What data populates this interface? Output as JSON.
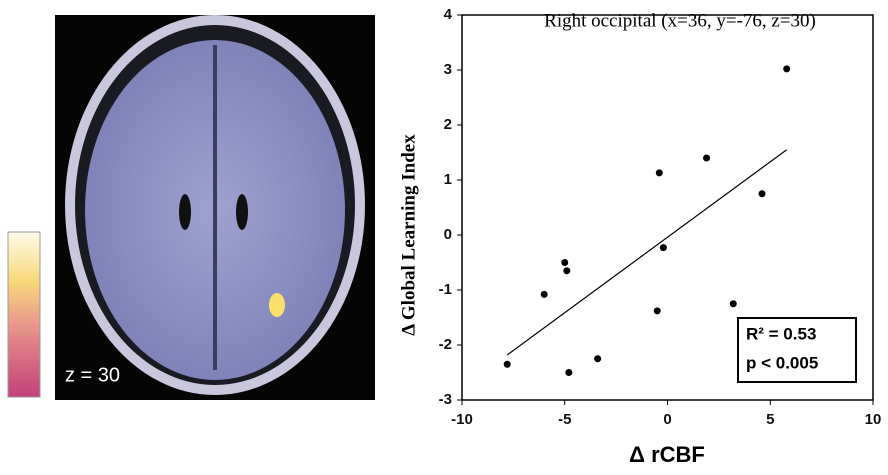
{
  "chart_data": {
    "type": "scatter",
    "title": "Right occipital (x=36, y=-76, z=30)",
    "x_label": "Δ rCBF",
    "y_label": "Δ Global Learning Index",
    "image_label": "z = 30",
    "annotations": [
      "R² = 0.53",
      "p < 0.005"
    ],
    "x": [
      -7.8,
      -6,
      -5,
      -4.9,
      -4.8,
      -3.4,
      -0.5,
      -0.4,
      -0.2,
      1.9,
      3.2,
      4.6,
      5.8
    ],
    "values": [
      -2.35,
      -1.08,
      -0.5,
      -0.65,
      -2.5,
      -2.25,
      -1.38,
      1.13,
      -0.23,
      1.4,
      -1.25,
      0.75,
      3.02
    ],
    "color": "#000000",
    "fit_line": {
      "x": [
        -7.8,
        5.8
      ],
      "y": [
        -2.18,
        1.55
      ]
    },
    "xlim": [
      -10,
      10
    ],
    "xticks": [
      -10,
      -5,
      0,
      5,
      10
    ],
    "ylim": [
      -3,
      4
    ],
    "yticks": [
      -3,
      -2,
      -1,
      0,
      1,
      2,
      3,
      4
    ],
    "grid": false
  }
}
